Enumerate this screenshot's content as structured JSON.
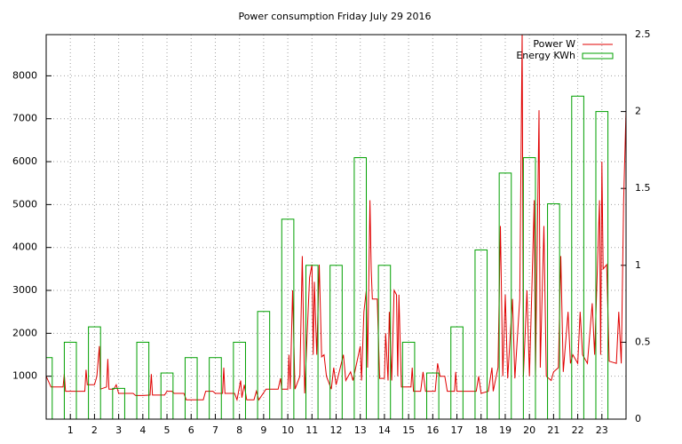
{
  "chart_data": {
    "type": "line_bar",
    "title": "Power consumption Friday July 29 2016",
    "xlim": [
      0,
      24
    ],
    "xticks": [
      1,
      2,
      3,
      4,
      5,
      6,
      7,
      8,
      9,
      10,
      11,
      12,
      13,
      14,
      15,
      16,
      17,
      18,
      19,
      20,
      21,
      22,
      23
    ],
    "ylim": [
      0,
      8960
    ],
    "yticks": [
      1000,
      2000,
      3000,
      4000,
      5000,
      6000,
      7000,
      8000
    ],
    "y2lim": [
      0,
      2.5
    ],
    "y2ticks": [
      0,
      0.5,
      1,
      1.5,
      2,
      2.5
    ],
    "grid": true,
    "legend": "top-right",
    "series": [
      {
        "name": "Power W",
        "color": "#e00000",
        "type": "line",
        "x": [
          0,
          0.2,
          0.7,
          0.75,
          0.8,
          1.6,
          1.65,
          1.7,
          2.0,
          2.1,
          2.2,
          2.25,
          2.5,
          2.55,
          2.6,
          2.8,
          2.9,
          3.0,
          3.6,
          3.7,
          4.0,
          4.3,
          4.35,
          4.4,
          4.9,
          5.0,
          5.2,
          5.3,
          5.7,
          5.8,
          6.5,
          6.6,
          6.9,
          7.0,
          7.3,
          7.35,
          7.4,
          7.8,
          7.9,
          8.05,
          8.1,
          8.2,
          8.3,
          8.6,
          8.7,
          8.8,
          9.1,
          9.6,
          9.7,
          9.75,
          10.0,
          10.05,
          10.1,
          10.2,
          10.3,
          10.5,
          10.6,
          10.7,
          10.9,
          11.0,
          11.05,
          11.1,
          11.2,
          11.3,
          11.4,
          11.5,
          11.6,
          11.8,
          11.9,
          12.0,
          12.3,
          12.4,
          12.6,
          12.7,
          13.0,
          13.05,
          13.15,
          13.25,
          13.3,
          13.4,
          13.45,
          13.5,
          13.7,
          13.8,
          14.0,
          14.05,
          14.15,
          14.2,
          14.3,
          14.4,
          14.5,
          14.55,
          14.6,
          14.7,
          15.1,
          15.15,
          15.2,
          15.5,
          15.6,
          15.7,
          16.1,
          16.2,
          16.3,
          16.5,
          16.6,
          16.9,
          16.95,
          17.0,
          17.8,
          17.9,
          18.0,
          18.3,
          18.45,
          18.5,
          18.7,
          18.8,
          18.9,
          19.0,
          19.1,
          19.3,
          19.4,
          19.6,
          19.7,
          19.75,
          19.9,
          20.0,
          20.1,
          20.2,
          20.25,
          20.4,
          20.45,
          20.6,
          20.7,
          20.9,
          21.0,
          21.2,
          21.3,
          21.4,
          21.6,
          21.7,
          21.8,
          22.0,
          22.1,
          22.2,
          22.4,
          22.6,
          22.7,
          22.8,
          22.9,
          22.95,
          23.0,
          23.05,
          23.2,
          23.3,
          23.6,
          23.7,
          23.8,
          23.9,
          24.0
        ],
        "values": [
          1000,
          750,
          750,
          1050,
          650,
          650,
          1150,
          800,
          800,
          1000,
          1700,
          700,
          750,
          1400,
          700,
          700,
          800,
          600,
          600,
          550,
          550,
          560,
          1050,
          560,
          560,
          650,
          650,
          600,
          600,
          450,
          450,
          650,
          650,
          600,
          600,
          1200,
          600,
          600,
          450,
          900,
          500,
          800,
          450,
          450,
          650,
          450,
          700,
          700,
          950,
          700,
          700,
          1500,
          700,
          3000,
          700,
          1000,
          3800,
          600,
          3300,
          3600,
          1500,
          3200,
          1500,
          3600,
          1450,
          1500,
          1000,
          700,
          1200,
          800,
          1500,
          900,
          1100,
          900,
          1700,
          900,
          2500,
          3000,
          1200,
          5100,
          3500,
          2800,
          2800,
          950,
          950,
          2000,
          900,
          2500,
          900,
          3000,
          2900,
          1000,
          2900,
          750,
          750,
          1200,
          650,
          650,
          1100,
          650,
          650,
          1300,
          1000,
          1000,
          650,
          650,
          1100,
          650,
          650,
          1000,
          600,
          650,
          1200,
          650,
          1200,
          4500,
          1000,
          2900,
          950,
          2800,
          950,
          2800,
          9000,
          1000,
          3000,
          1000,
          3000,
          5100,
          1000,
          7200,
          1200,
          4500,
          1000,
          900,
          1100,
          1200,
          3800,
          1100,
          2500,
          1300,
          1500,
          1300,
          2500,
          1500,
          1300,
          2700,
          1500,
          3300,
          5100,
          1500,
          6000,
          3500,
          3600,
          1350,
          1300,
          2500,
          1300,
          5100,
          7200
        ]
      },
      {
        "name": "Energy KWh",
        "color": "#00a000",
        "type": "bar",
        "axis": "y2",
        "x": [
          0,
          1,
          2,
          3,
          4,
          5,
          6,
          7,
          8,
          9,
          10,
          11,
          12,
          13,
          14,
          15,
          16,
          17,
          18,
          19,
          20,
          21,
          22,
          23
        ],
        "values": [
          0.4,
          0.5,
          0.6,
          0.2,
          0.5,
          0.3,
          0.4,
          0.4,
          0.5,
          0.7,
          1.3,
          1.0,
          1.0,
          1.7,
          1.0,
          0.5,
          0.3,
          0.6,
          1.1,
          1.6,
          1.7,
          1.4,
          2.1,
          2.0
        ]
      }
    ]
  }
}
